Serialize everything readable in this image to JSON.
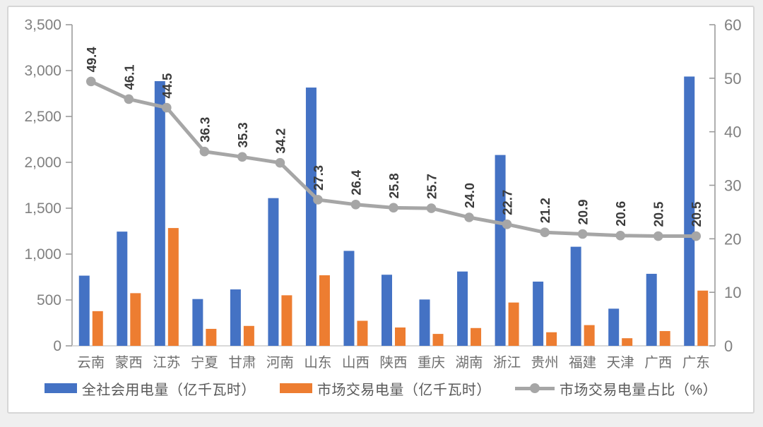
{
  "chart_data": {
    "type": "bar",
    "subtype": "combo-bar-line",
    "categories": [
      "云南",
      "蒙西",
      "江苏",
      "宁夏",
      "甘肃",
      "河南",
      "山东",
      "山西",
      "陕西",
      "重庆",
      "湖南",
      "浙江",
      "贵州",
      "福建",
      "天津",
      "广西",
      "广东"
    ],
    "series": [
      {
        "name": "全社会用电量（亿千瓦时）",
        "type": "bar",
        "axis": "left",
        "color": "#4472C4",
        "values": [
          765,
          1245,
          2885,
          510,
          615,
          1610,
          2815,
          1035,
          775,
          505,
          810,
          2080,
          700,
          1080,
          405,
          785,
          2935
        ]
      },
      {
        "name": "市场交易电量（亿千瓦时）",
        "type": "bar",
        "axis": "left",
        "color": "#ED7D31",
        "values": [
          378,
          574,
          1284,
          185,
          217,
          551,
          769,
          273,
          200,
          130,
          194,
          472,
          148,
          226,
          83,
          161,
          602
        ]
      },
      {
        "name": "市场交易电量占比（%）",
        "type": "line",
        "axis": "right",
        "color": "#A6A6A6",
        "values": [
          49.4,
          46.1,
          44.5,
          36.3,
          35.3,
          34.2,
          27.3,
          26.4,
          25.8,
          25.7,
          24.0,
          22.7,
          21.2,
          20.9,
          20.6,
          20.5,
          20.5
        ],
        "data_labels": [
          "49.4",
          "46.1",
          "44.5",
          "36.3",
          "35.3",
          "34.2",
          "27.3",
          "26.4",
          "25.8",
          "25.7",
          "24.0",
          "22.7",
          "21.2",
          "20.9",
          "20.6",
          "20.5",
          "20.5"
        ]
      }
    ],
    "title": "",
    "xlabel": "",
    "ylabel": "",
    "left_axis": {
      "min": 0,
      "max": 3500,
      "step": 500,
      "tick_labels": [
        "0",
        "500",
        "1,000",
        "1,500",
        "2,000",
        "2,500",
        "3,000",
        "3,500"
      ]
    },
    "right_axis": {
      "min": 0,
      "max": 60,
      "step": 10,
      "tick_labels": [
        "0",
        "10",
        "20",
        "30",
        "40",
        "50",
        "60"
      ]
    },
    "grid": false,
    "legend_position": "bottom"
  },
  "style": {
    "axis_text_color": "#808080",
    "category_text_color": "#6e6e6e",
    "data_label_color": "#3b3b3b",
    "axis_line_color": "#9b9b9b",
    "baseline_color": "#d9d9d9",
    "bar_blue": "#4472C4",
    "bar_orange": "#ED7D31",
    "line_gray": "#A6A6A6"
  }
}
